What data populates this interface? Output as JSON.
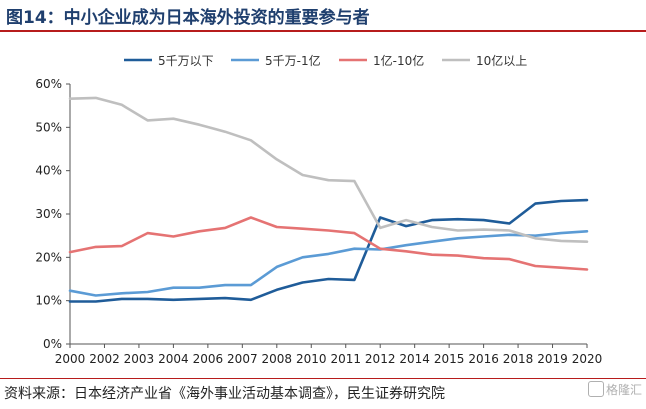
{
  "header": {
    "title": "图14：中小企业成为日本海外投资的重要参与者"
  },
  "footer": {
    "source": "资料来源：日本经济产业省《海外事业活动基本调查》，民生证券研究院",
    "watermark": "格隆汇"
  },
  "colors": {
    "title": "#1f3f6e",
    "rule": "#b71c1c"
  },
  "chart_data": {
    "type": "line",
    "categories": [
      "2000",
      "2001",
      "2002",
      "2003",
      "2004",
      "2005",
      "2006",
      "2007",
      "2008",
      "2009",
      "2010",
      "2011",
      "2012",
      "2013",
      "2014",
      "2015",
      "2016",
      "2017",
      "2018",
      "2019",
      "2020"
    ],
    "x_tick_labels": [
      "2000",
      "2002",
      "2003",
      "2004",
      "2006",
      "2007",
      "2008",
      "2010",
      "2011",
      "2012",
      "2014",
      "2015",
      "2016",
      "2018",
      "2019",
      "2020"
    ],
    "ylim": [
      0,
      60
    ],
    "y_ticks": [
      "0%",
      "10%",
      "20%",
      "30%",
      "40%",
      "50%",
      "60%"
    ],
    "grid": false,
    "legend_position": "top",
    "series": [
      {
        "name": "5千万以下",
        "color": "#1f5c99",
        "values": [
          9.8,
          9.8,
          10.4,
          10.4,
          10.2,
          10.4,
          10.6,
          10.2,
          12.5,
          14.2,
          15.0,
          14.8,
          29.2,
          27.2,
          28.6,
          28.8,
          28.6,
          27.8,
          32.4,
          33.0,
          33.2
        ]
      },
      {
        "name": "5千万-1亿",
        "color": "#5b9bd5",
        "values": [
          12.3,
          11.2,
          11.7,
          12.0,
          13.0,
          13.0,
          13.6,
          13.6,
          17.8,
          20.0,
          20.8,
          22.0,
          21.8,
          22.8,
          23.6,
          24.4,
          24.8,
          25.2,
          25.0,
          25.6,
          26.0
        ]
      },
      {
        "name": "1亿-10亿",
        "color": "#e57373",
        "values": [
          21.2,
          22.4,
          22.6,
          25.6,
          24.8,
          26.0,
          26.8,
          29.2,
          27.0,
          26.6,
          26.2,
          25.6,
          22.0,
          21.4,
          20.6,
          20.4,
          19.8,
          19.6,
          18.0,
          17.6,
          17.2
        ]
      },
      {
        "name": "10亿以上",
        "color": "#bfbfbf",
        "values": [
          56.6,
          56.8,
          55.2,
          51.6,
          52.0,
          50.6,
          49.0,
          47.0,
          42.6,
          39.0,
          37.8,
          37.6,
          26.8,
          28.6,
          27.0,
          26.2,
          26.4,
          26.2,
          24.4,
          23.8,
          23.6
        ]
      }
    ]
  }
}
